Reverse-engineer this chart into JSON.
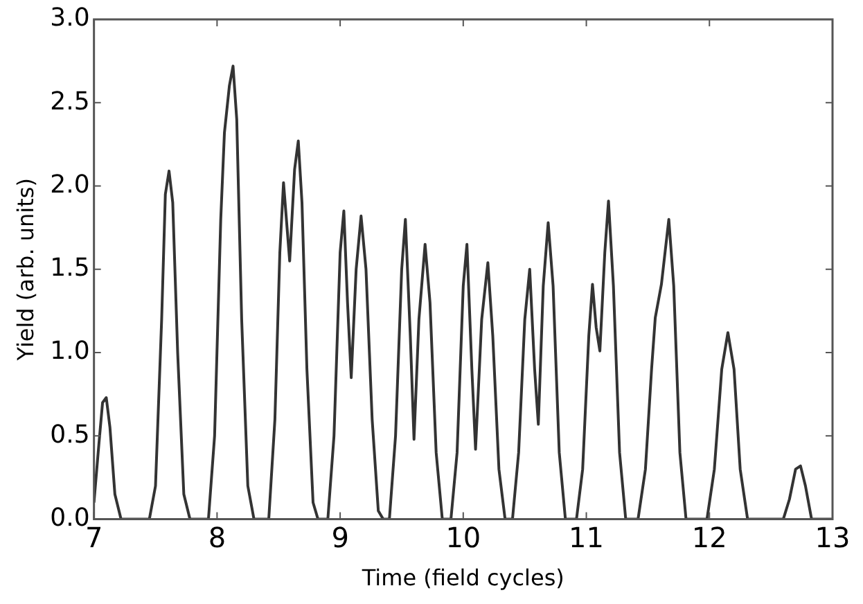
{
  "chart_data": {
    "type": "line",
    "xlabel": "Time (field cycles)",
    "ylabel": "Yield (arb. units)",
    "xlim": [
      7,
      13
    ],
    "ylim": [
      0,
      3
    ],
    "xticks": [
      7,
      8,
      9,
      10,
      11,
      12,
      13
    ],
    "yticks": [
      {
        "value": 0,
        "label": "0.0"
      },
      {
        "value": 0.5,
        "label": "0.5"
      },
      {
        "value": 1,
        "label": "1.0"
      },
      {
        "value": 1.5,
        "label": "1.5"
      },
      {
        "value": 2,
        "label": "2.0"
      },
      {
        "value": 2.5,
        "label": "2.5"
      },
      {
        "value": 3,
        "label": "3.0"
      }
    ],
    "grid": false,
    "legend": false,
    "marker": "none",
    "line_style": "solid",
    "series": [
      {
        "color": "#333333",
        "x": [
          7.0,
          7.04,
          7.07,
          7.1,
          7.13,
          7.17,
          7.22,
          7.45,
          7.5,
          7.55,
          7.58,
          7.61,
          7.64,
          7.68,
          7.73,
          7.78,
          7.93,
          7.98,
          8.03,
          8.06,
          8.1,
          8.13,
          8.16,
          8.2,
          8.25,
          8.3,
          8.42,
          8.47,
          8.51,
          8.54,
          8.59,
          8.63,
          8.66,
          8.69,
          8.73,
          8.78,
          8.82,
          8.9,
          8.95,
          9.0,
          9.03,
          9.06,
          9.09,
          9.13,
          9.17,
          9.21,
          9.26,
          9.31,
          9.35,
          9.4,
          9.45,
          9.5,
          9.53,
          9.57,
          9.6,
          9.64,
          9.69,
          9.73,
          9.78,
          9.83,
          9.9,
          9.95,
          10.0,
          10.03,
          10.07,
          10.1,
          10.15,
          10.2,
          10.24,
          10.29,
          10.34,
          10.4,
          10.45,
          10.5,
          10.54,
          10.58,
          10.61,
          10.65,
          10.69,
          10.73,
          10.78,
          10.83,
          10.92,
          10.97,
          11.02,
          11.05,
          11.08,
          11.11,
          11.15,
          11.18,
          11.22,
          11.27,
          11.32,
          11.42,
          11.48,
          11.53,
          11.56,
          11.61,
          11.67,
          11.71,
          11.76,
          11.81,
          11.98,
          12.04,
          12.1,
          12.15,
          12.2,
          12.25,
          12.31,
          12.6,
          12.65,
          12.7,
          12.74,
          12.78,
          12.83,
          13.0
        ],
        "values": [
          0.1,
          0.45,
          0.7,
          0.73,
          0.55,
          0.15,
          0,
          0,
          0.2,
          1.2,
          1.95,
          2.09,
          1.9,
          1.0,
          0.15,
          0,
          0,
          0.5,
          1.8,
          2.32,
          2.6,
          2.72,
          2.4,
          1.2,
          0.2,
          0,
          0,
          0.6,
          1.6,
          2.02,
          1.55,
          2.1,
          2.27,
          1.9,
          0.9,
          0.1,
          0,
          0,
          0.5,
          1.6,
          1.85,
          1.3,
          0.85,
          1.5,
          1.82,
          1.5,
          0.6,
          0.05,
          0,
          0,
          0.5,
          1.5,
          1.8,
          1.1,
          0.48,
          1.2,
          1.65,
          1.3,
          0.4,
          0,
          0,
          0.4,
          1.4,
          1.65,
          0.9,
          0.42,
          1.2,
          1.54,
          1.1,
          0.3,
          0,
          0,
          0.4,
          1.2,
          1.5,
          0.9,
          0.57,
          1.4,
          1.78,
          1.4,
          0.4,
          0,
          0,
          0.3,
          1.1,
          1.41,
          1.15,
          1.01,
          1.6,
          1.91,
          1.4,
          0.4,
          0,
          0,
          0.3,
          0.9,
          1.21,
          1.41,
          1.8,
          1.4,
          0.4,
          0,
          0,
          0.3,
          0.9,
          1.12,
          0.9,
          0.3,
          0,
          0,
          0.12,
          0.3,
          0.32,
          0.2,
          0,
          0
        ]
      }
    ]
  }
}
